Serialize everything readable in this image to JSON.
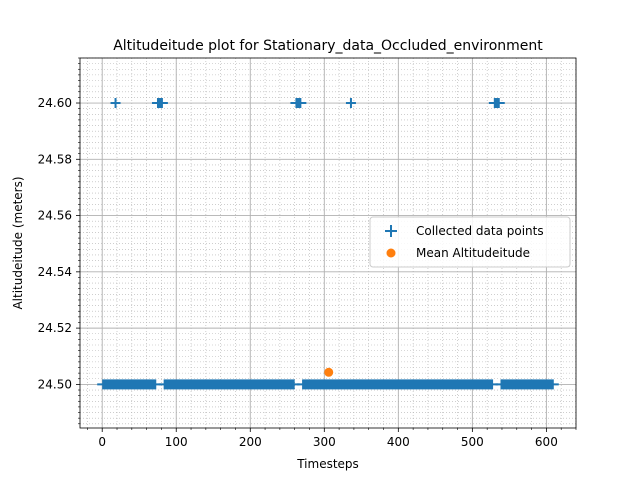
{
  "chart_data": {
    "type": "scatter",
    "title": "Altitudeitude plot for Stationary_data_Occluded_environment",
    "xlabel": "Timesteps",
    "ylabel": "Altitudeitude (meters)",
    "xlim": [
      -30,
      640
    ],
    "ylim": [
      24.4845,
      24.616
    ],
    "x_ticks": [
      0,
      100,
      200,
      300,
      400,
      500,
      600
    ],
    "y_ticks": [
      24.5,
      24.52,
      24.54,
      24.56,
      24.58,
      24.6
    ],
    "x_tick_labels": [
      "0",
      "100",
      "200",
      "300",
      "400",
      "500",
      "600"
    ],
    "y_tick_labels": [
      "24.50",
      "24.52",
      "24.54",
      "24.56",
      "24.58",
      "24.60"
    ],
    "grid": true,
    "minor_grid": true,
    "legend_position": "center-right",
    "series": [
      {
        "name": "Collected data points",
        "marker": "plus",
        "color": "#1f77b4",
        "value_runs": [
          {
            "y": 24.5,
            "x_start": 0,
            "x_end": 73
          },
          {
            "y": 24.5,
            "x_start": 83,
            "x_end": 260
          },
          {
            "y": 24.5,
            "x_start": 270,
            "x_end": 528
          },
          {
            "y": 24.5,
            "x_start": 538,
            "x_end": 610
          },
          {
            "y": 24.6,
            "x_start": 18,
            "x_end": 18
          },
          {
            "y": 24.6,
            "x_start": 74,
            "x_end": 82
          },
          {
            "y": 24.6,
            "x_start": 261,
            "x_end": 269
          },
          {
            "y": 24.6,
            "x_start": 336,
            "x_end": 336
          },
          {
            "y": 24.6,
            "x_start": 529,
            "x_end": 537
          }
        ]
      },
      {
        "name": "Mean Altitudeitude",
        "marker": "circle",
        "color": "#ff7f0e",
        "points": [
          {
            "x": 306,
            "y": 24.5043
          }
        ]
      }
    ]
  }
}
